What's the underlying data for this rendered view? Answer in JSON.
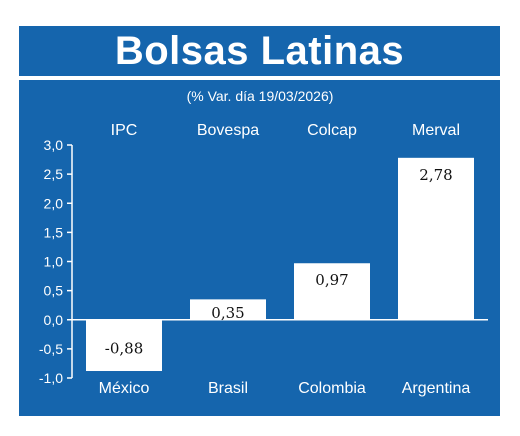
{
  "colors": {
    "background": "#1565ad",
    "bar_fill": "#ffffff",
    "text": "#ffffff",
    "value_text": "#111111"
  },
  "chart_data": {
    "type": "bar",
    "title": "Bolsas Latinas",
    "subtitle": "(% Var. día 19/03/2026)",
    "indices": [
      "IPC",
      "Bovespa",
      "Colcap",
      "Merval"
    ],
    "categories": [
      "México",
      "Brasil",
      "Colombia",
      "Argentina"
    ],
    "values": [
      -0.88,
      0.35,
      0.97,
      2.78
    ],
    "value_labels": [
      "-0,88",
      "0,35",
      "0,97",
      "2,78"
    ],
    "ylim": [
      -1.0,
      3.0
    ],
    "yticks": [
      3.0,
      2.5,
      2.0,
      1.5,
      1.0,
      0.5,
      0.0,
      -0.5,
      -1.0
    ],
    "ytick_labels": [
      "3,0",
      "2,5",
      "2,0",
      "1,5",
      "1,0",
      "0,5",
      "0,0",
      "-0,5",
      "-1,0"
    ],
    "grid": false,
    "legend": "none"
  }
}
